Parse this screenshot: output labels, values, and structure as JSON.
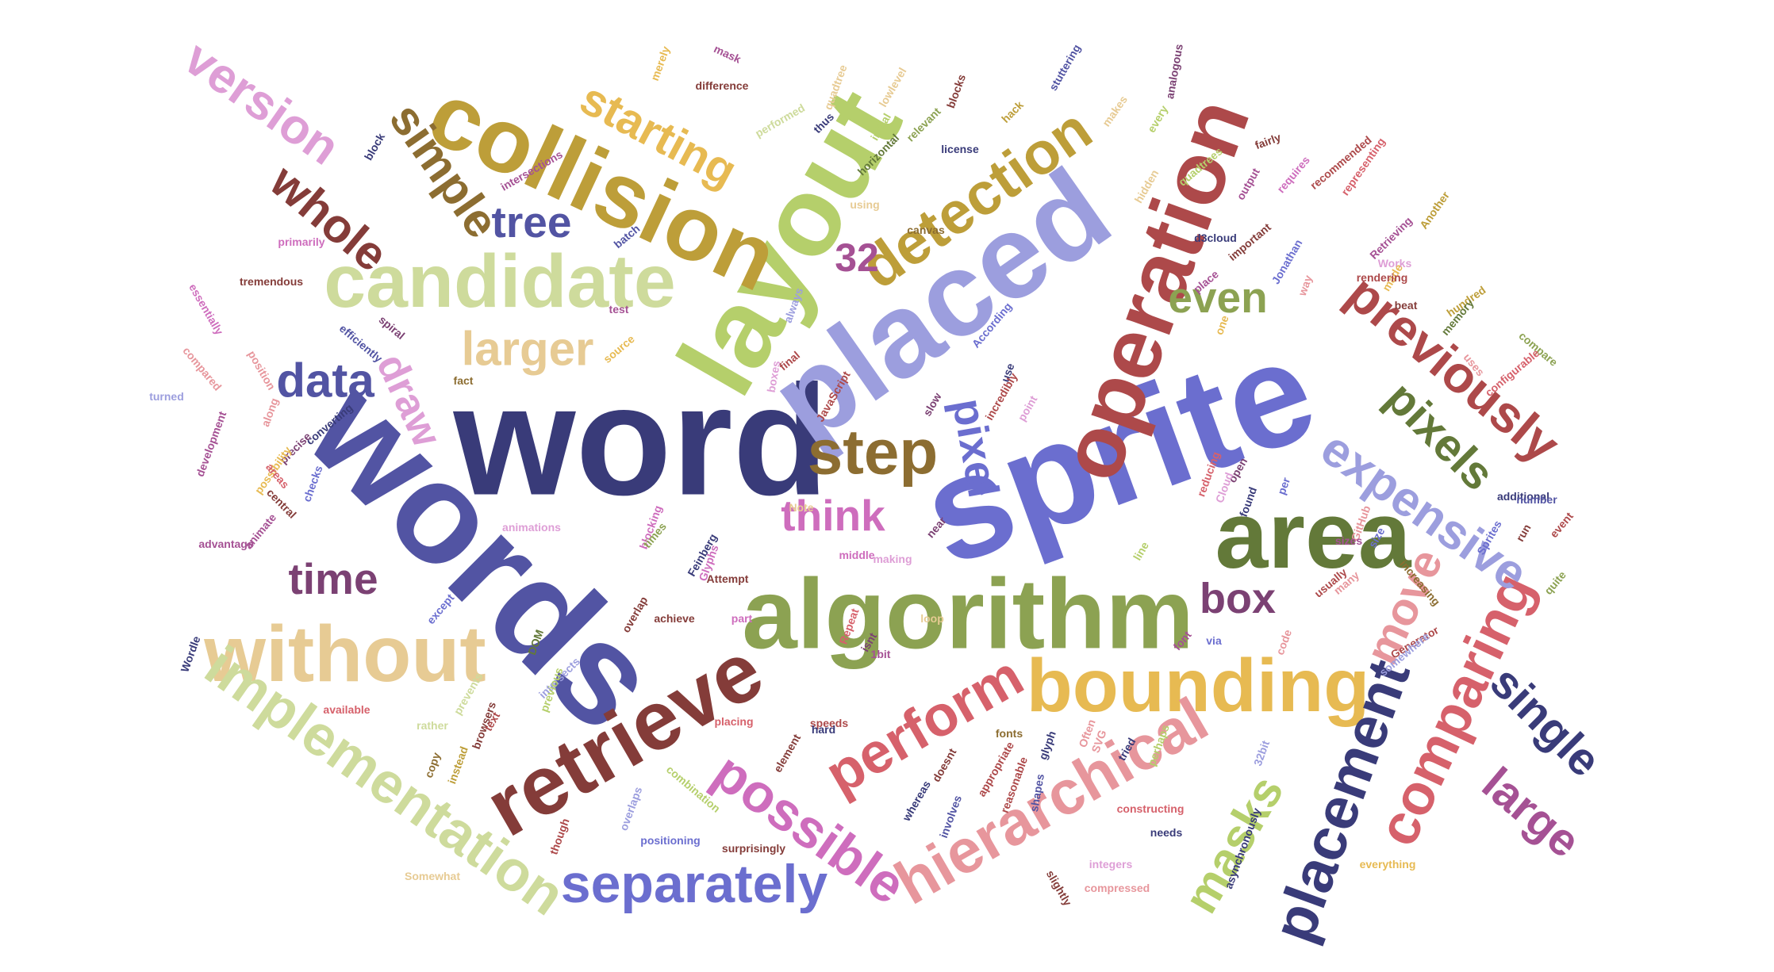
{
  "cloud": {
    "words": [
      {
        "text": "word",
        "color": "#393b79"
      },
      {
        "text": "words",
        "color": "#5254a3"
      },
      {
        "text": "sprite",
        "color": "#6b6ecf"
      },
      {
        "text": "placed",
        "color": "#9c9ede"
      },
      {
        "text": "algorithm",
        "color": "#8ca252"
      },
      {
        "text": "area",
        "color": "#637939"
      },
      {
        "text": "layout",
        "color": "#b5cf6b"
      },
      {
        "text": "collision",
        "color": "#bd9e39"
      },
      {
        "text": "operation",
        "color": "#ad494a"
      },
      {
        "text": "retrieve",
        "color": "#843c39"
      },
      {
        "text": "candidate",
        "color": "#cedb9c"
      },
      {
        "text": "bounding",
        "color": "#e7ba52"
      },
      {
        "text": "without",
        "color": "#e7cb94"
      },
      {
        "text": "implementation",
        "color": "#cedb9c"
      },
      {
        "text": "hierarchical",
        "color": "#e7969c"
      },
      {
        "text": "detection",
        "color": "#bd9e39"
      },
      {
        "text": "possible",
        "color": "#ce6dbd"
      },
      {
        "text": "separately",
        "color": "#6b6ecf"
      },
      {
        "text": "placement",
        "color": "#393b79"
      },
      {
        "text": "comparing",
        "color": "#d6616b"
      },
      {
        "text": "previously",
        "color": "#ad494a"
      },
      {
        "text": "expensive",
        "color": "#9c9ede"
      },
      {
        "text": "perform",
        "color": "#d6616b"
      },
      {
        "text": "step",
        "color": "#8c6d31"
      },
      {
        "text": "version",
        "color": "#de9ed6"
      },
      {
        "text": "simple",
        "color": "#8c6d31"
      },
      {
        "text": "whole",
        "color": "#843c39"
      },
      {
        "text": "starting",
        "color": "#e7ba52"
      },
      {
        "text": "masks",
        "color": "#b5cf6b"
      },
      {
        "text": "large",
        "color": "#a55194"
      },
      {
        "text": "single",
        "color": "#393b79"
      },
      {
        "text": "pixels",
        "color": "#637939"
      },
      {
        "text": "move",
        "color": "#e7969c"
      },
      {
        "text": "pixel",
        "color": "#6b6ecf"
      },
      {
        "text": "data",
        "color": "#5254a3"
      },
      {
        "text": "draw",
        "color": "#de9ed6"
      },
      {
        "text": "larger",
        "color": "#e7cb94"
      },
      {
        "text": "tree",
        "color": "#5254a3"
      },
      {
        "text": "even",
        "color": "#8ca252"
      },
      {
        "text": "time",
        "color": "#7b4173"
      },
      {
        "text": "think",
        "color": "#ce6dbd"
      },
      {
        "text": "box",
        "color": "#7b4173"
      },
      {
        "text": "32",
        "color": "#a55194"
      },
      {
        "text": "mask",
        "color": "#a55194"
      },
      {
        "text": "difference",
        "color": "#843c39"
      },
      {
        "text": "merely",
        "color": "#e7ba52"
      },
      {
        "text": "quadtree",
        "color": "#e7cb94"
      },
      {
        "text": "lowlevel",
        "color": "#e7cb94"
      },
      {
        "text": "blocks",
        "color": "#843c39"
      },
      {
        "text": "stuttering",
        "color": "#5254a3"
      },
      {
        "text": "analogous",
        "color": "#7b4173"
      },
      {
        "text": "makes",
        "color": "#e7cb94"
      },
      {
        "text": "every",
        "color": "#b5cf6b"
      },
      {
        "text": "performed",
        "color": "#cedb9c"
      },
      {
        "text": "thus",
        "color": "#393b79"
      },
      {
        "text": "initial",
        "color": "#b5cf6b"
      },
      {
        "text": "relevant",
        "color": "#8ca252"
      },
      {
        "text": "hack",
        "color": "#bd9e39"
      },
      {
        "text": "horizontal",
        "color": "#637939"
      },
      {
        "text": "license",
        "color": "#393b79"
      },
      {
        "text": "fairly",
        "color": "#843c39"
      },
      {
        "text": "recommended",
        "color": "#ad494a"
      },
      {
        "text": "representing",
        "color": "#d6616b"
      },
      {
        "text": "requires",
        "color": "#ce6dbd"
      },
      {
        "text": "output",
        "color": "#a55194"
      },
      {
        "text": "quadtrees",
        "color": "#b5cf6b"
      },
      {
        "text": "hidden",
        "color": "#e7cb94"
      },
      {
        "text": "block",
        "color": "#393b79"
      },
      {
        "text": "intersections",
        "color": "#a55194"
      },
      {
        "text": "using",
        "color": "#e7cb94"
      },
      {
        "text": "batch",
        "color": "#5254a3"
      },
      {
        "text": "canvas",
        "color": "#8c6d31"
      },
      {
        "text": "important",
        "color": "#843c39"
      },
      {
        "text": "Jonathan",
        "color": "#6b6ecf"
      },
      {
        "text": "d3cloud",
        "color": "#393b79"
      },
      {
        "text": "Retrieving",
        "color": "#a55194"
      },
      {
        "text": "Another",
        "color": "#bd9e39"
      },
      {
        "text": "primarily",
        "color": "#ce6dbd"
      },
      {
        "text": "Works",
        "color": "#de9ed6"
      },
      {
        "text": "made",
        "color": "#e7ba52"
      },
      {
        "text": "rendering",
        "color": "#ad494a"
      },
      {
        "text": "place",
        "color": "#a55194"
      },
      {
        "text": "way",
        "color": "#e7969c"
      },
      {
        "text": "essentially",
        "color": "#ce6dbd"
      },
      {
        "text": "tremendous",
        "color": "#843c39"
      },
      {
        "text": "always",
        "color": "#9c9ede"
      },
      {
        "text": "According",
        "color": "#6b6ecf"
      },
      {
        "text": "hundred",
        "color": "#bd9e39"
      },
      {
        "text": "memory",
        "color": "#637939"
      },
      {
        "text": "beat",
        "color": "#843c39"
      },
      {
        "text": "one",
        "color": "#e7ba52"
      },
      {
        "text": "test",
        "color": "#a55194"
      },
      {
        "text": "spiral",
        "color": "#7b4173"
      },
      {
        "text": "efficiently",
        "color": "#5254a3"
      },
      {
        "text": "compare",
        "color": "#8ca252"
      },
      {
        "text": "configurable",
        "color": "#d6616b"
      },
      {
        "text": "uses",
        "color": "#e7969c"
      },
      {
        "text": "compared",
        "color": "#e7969c"
      },
      {
        "text": "position",
        "color": "#e7969c"
      },
      {
        "text": "source",
        "color": "#e7ba52"
      },
      {
        "text": "final",
        "color": "#ad494a"
      },
      {
        "text": "boxes",
        "color": "#de9ed6"
      },
      {
        "text": "use",
        "color": "#393b79"
      },
      {
        "text": "incredibly",
        "color": "#ad494a"
      },
      {
        "text": "fact",
        "color": "#8c6d31"
      },
      {
        "text": "turned",
        "color": "#9c9ede"
      },
      {
        "text": "converting",
        "color": "#393b79"
      },
      {
        "text": "precise",
        "color": "#7b4173"
      },
      {
        "text": "JavaScript",
        "color": "#ad494a"
      },
      {
        "text": "point",
        "color": "#de9ed6"
      },
      {
        "text": "slow",
        "color": "#7b4173"
      },
      {
        "text": "along",
        "color": "#e7969c"
      },
      {
        "text": "development",
        "color": "#a55194"
      },
      {
        "text": "possibility",
        "color": "#e7ba52"
      },
      {
        "text": "areas",
        "color": "#d6616b"
      },
      {
        "text": "reducing",
        "color": "#d6616b"
      },
      {
        "text": "open",
        "color": "#7b4173"
      },
      {
        "text": "Cloud",
        "color": "#de9ed6"
      },
      {
        "text": "found",
        "color": "#393b79"
      },
      {
        "text": "per",
        "color": "#6b6ecf"
      },
      {
        "text": "additional",
        "color": "#393b79"
      },
      {
        "text": "number",
        "color": "#5254a3"
      },
      {
        "text": "checks",
        "color": "#6b6ecf"
      },
      {
        "text": "central",
        "color": "#843c39"
      },
      {
        "text": "Note",
        "color": "#e7cb94"
      },
      {
        "text": "blocking",
        "color": "#ce6dbd"
      },
      {
        "text": "animations",
        "color": "#de9ed6"
      },
      {
        "text": "GitHub",
        "color": "#e7969c"
      },
      {
        "text": "size",
        "color": "#6b6ecf"
      },
      {
        "text": "event",
        "color": "#ad494a"
      },
      {
        "text": "run",
        "color": "#843c39"
      },
      {
        "text": "sizes",
        "color": "#a55194"
      },
      {
        "text": "advantage",
        "color": "#a55194"
      },
      {
        "text": "animate",
        "color": "#a55194"
      },
      {
        "text": "times",
        "color": "#8ca252"
      },
      {
        "text": "middle",
        "color": "#ce6dbd"
      },
      {
        "text": "making",
        "color": "#de9ed6"
      },
      {
        "text": "near",
        "color": "#7b4173"
      },
      {
        "text": "line",
        "color": "#b5cf6b"
      },
      {
        "text": "Sprites",
        "color": "#6b6ecf"
      },
      {
        "text": "Feinberg",
        "color": "#393b79"
      },
      {
        "text": "Glyphs",
        "color": "#ce6dbd"
      },
      {
        "text": "Attempt",
        "color": "#843c39"
      },
      {
        "text": "usually",
        "color": "#ad494a"
      },
      {
        "text": "many",
        "color": "#e7969c"
      },
      {
        "text": "increasing",
        "color": "#8c6d31"
      },
      {
        "text": "quite",
        "color": "#8ca252"
      },
      {
        "text": "except",
        "color": "#6b6ecf"
      },
      {
        "text": "overlap",
        "color": "#843c39"
      },
      {
        "text": "achieve",
        "color": "#843c39"
      },
      {
        "text": "part",
        "color": "#ce6dbd"
      },
      {
        "text": "Repeat",
        "color": "#d6616b"
      },
      {
        "text": "loop",
        "color": "#e7cb94"
      },
      {
        "text": "font",
        "color": "#a55194"
      },
      {
        "text": "via",
        "color": "#6b6ecf"
      },
      {
        "text": "code",
        "color": "#e7969c"
      },
      {
        "text": "Generator",
        "color": "#ad494a"
      },
      {
        "text": "somewhere",
        "color": "#9c9ede"
      },
      {
        "text": "Wordle",
        "color": "#393b79"
      },
      {
        "text": "DOM",
        "color": "#637939"
      },
      {
        "text": "isnt",
        "color": "#7b4173"
      },
      {
        "text": "1bit",
        "color": "#a55194"
      },
      {
        "text": "intersects",
        "color": "#9c9ede"
      },
      {
        "text": "previous",
        "color": "#b5cf6b"
      },
      {
        "text": "prevents",
        "color": "#cedb9c"
      },
      {
        "text": "available",
        "color": "#d6616b"
      },
      {
        "text": "speeds",
        "color": "#ad494a"
      },
      {
        "text": "placing",
        "color": "#d6616b"
      },
      {
        "text": "rather",
        "color": "#cedb9c"
      },
      {
        "text": "browsers",
        "color": "#843c39"
      },
      {
        "text": "text",
        "color": "#ad494a"
      },
      {
        "text": "fonts",
        "color": "#8c6d31"
      },
      {
        "text": "hard",
        "color": "#393b79"
      },
      {
        "text": "glyph",
        "color": "#393b79"
      },
      {
        "text": "SVG",
        "color": "#e7969c"
      },
      {
        "text": "tried",
        "color": "#393b79"
      },
      {
        "text": "Often",
        "color": "#e7969c"
      },
      {
        "text": "element",
        "color": "#843c39"
      },
      {
        "text": "perhaps",
        "color": "#b5cf6b"
      },
      {
        "text": "copy",
        "color": "#8c6d31"
      },
      {
        "text": "instead",
        "color": "#bd9e39"
      },
      {
        "text": "doesnt",
        "color": "#843c39"
      },
      {
        "text": "appropriate",
        "color": "#ad494a"
      },
      {
        "text": "reasonable",
        "color": "#ad494a"
      },
      {
        "text": "shapes",
        "color": "#5254a3"
      },
      {
        "text": "32bit",
        "color": "#9c9ede"
      },
      {
        "text": "combination",
        "color": "#b5cf6b"
      },
      {
        "text": "overlaps",
        "color": "#9c9ede"
      },
      {
        "text": "whereas",
        "color": "#393b79"
      },
      {
        "text": "involves",
        "color": "#5254a3"
      },
      {
        "text": "constructing",
        "color": "#d6616b"
      },
      {
        "text": "needs",
        "color": "#393b79"
      },
      {
        "text": "asynchronously",
        "color": "#393b79"
      },
      {
        "text": "though",
        "color": "#ad494a"
      },
      {
        "text": "positioning",
        "color": "#6b6ecf"
      },
      {
        "text": "surprisingly",
        "color": "#843c39"
      },
      {
        "text": "integers",
        "color": "#de9ed6"
      },
      {
        "text": "everything",
        "color": "#e7ba52"
      },
      {
        "text": "Somewhat",
        "color": "#e7cb94"
      },
      {
        "text": "compressed",
        "color": "#e7969c"
      },
      {
        "text": "slightly",
        "color": "#843c39"
      }
    ]
  }
}
